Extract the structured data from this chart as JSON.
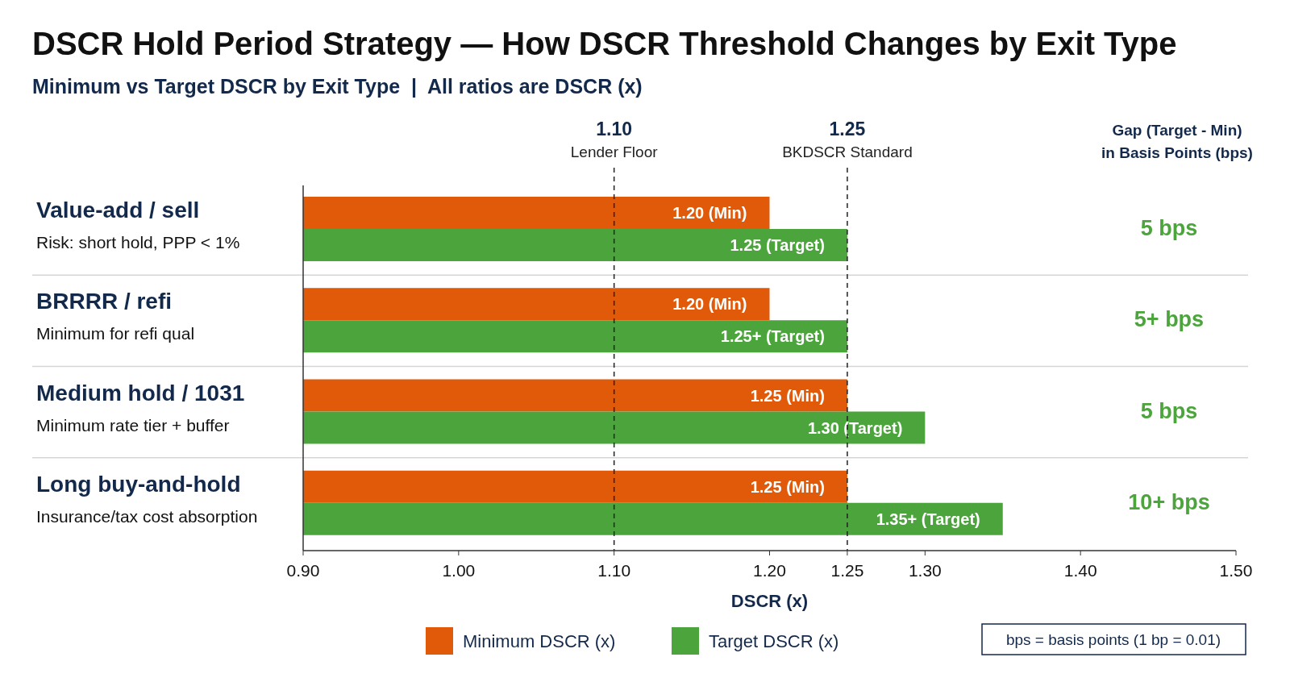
{
  "chart_data": {
    "type": "bar",
    "orientation": "horizontal",
    "title": "DSCR Hold Period Strategy — How DSCR Threshold Changes by Exit Type",
    "subtitle": "Minimum vs Target DSCR by Exit Type  |  All ratios are DSCR (x)",
    "xlabel": "DSCR (x)",
    "categories": [
      "Value-add / sell\nRisk: short hold, PPP < 1%",
      "BRRRR / refi\nMinimum for refi qual",
      "Medium hold / 1031\nMinimum rate tier + buffer",
      "Long buy-and-hold\nInsurance/tax cost absorption"
    ],
    "series": [
      {
        "name": "Minimum DSCR (x)",
        "color": "#e05a0a",
        "values": [
          1.2,
          1.2,
          1.25,
          1.25
        ],
        "value_labels": [
          "1.20 (Min)",
          "1.20 (Min)",
          "1.25 (Min)",
          "1.25 (Min)"
        ]
      },
      {
        "name": "Target DSCR (x)",
        "color": "#4ca53c",
        "values": [
          1.25,
          1.25,
          1.3,
          1.35
        ],
        "value_labels": [
          "1.25 (Target)",
          "1.25+ (Target)",
          "1.30 (Target)",
          "1.35+ (Target)"
        ]
      }
    ],
    "xlim": [
      0.9,
      1.5
    ],
    "xticks": [
      {
        "value": 0.9,
        "label": "0.90"
      },
      {
        "value": 1.0,
        "label": "1.00"
      },
      {
        "value": 1.1,
        "label": "1.10"
      },
      {
        "value": 1.2,
        "label": "1.20"
      },
      1.25,
      {
        "value": 1.3,
        "label": "1.30"
      },
      {
        "value": 1.4,
        "label": "1.40"
      },
      {
        "value": 1.5,
        "label": "1.50"
      }
    ],
    "ref_lines": [
      {
        "axis": "x",
        "value": 1.1,
        "label": "1.10\nLender Floor",
        "line_style": "dashed"
      },
      {
        "axis": "x",
        "value": 1.25,
        "label": "1.25\nBKDSCR Standard",
        "line_style": "dashed"
      }
    ],
    "annotations": [
      "Gap (Target - Min)\nin Basis Points (bps)",
      "5 bps",
      "5+ bps",
      "5 bps",
      "10+ bps",
      "bps = basis points (1 bp = 0.01)"
    ],
    "legend": "bottom"
  }
}
